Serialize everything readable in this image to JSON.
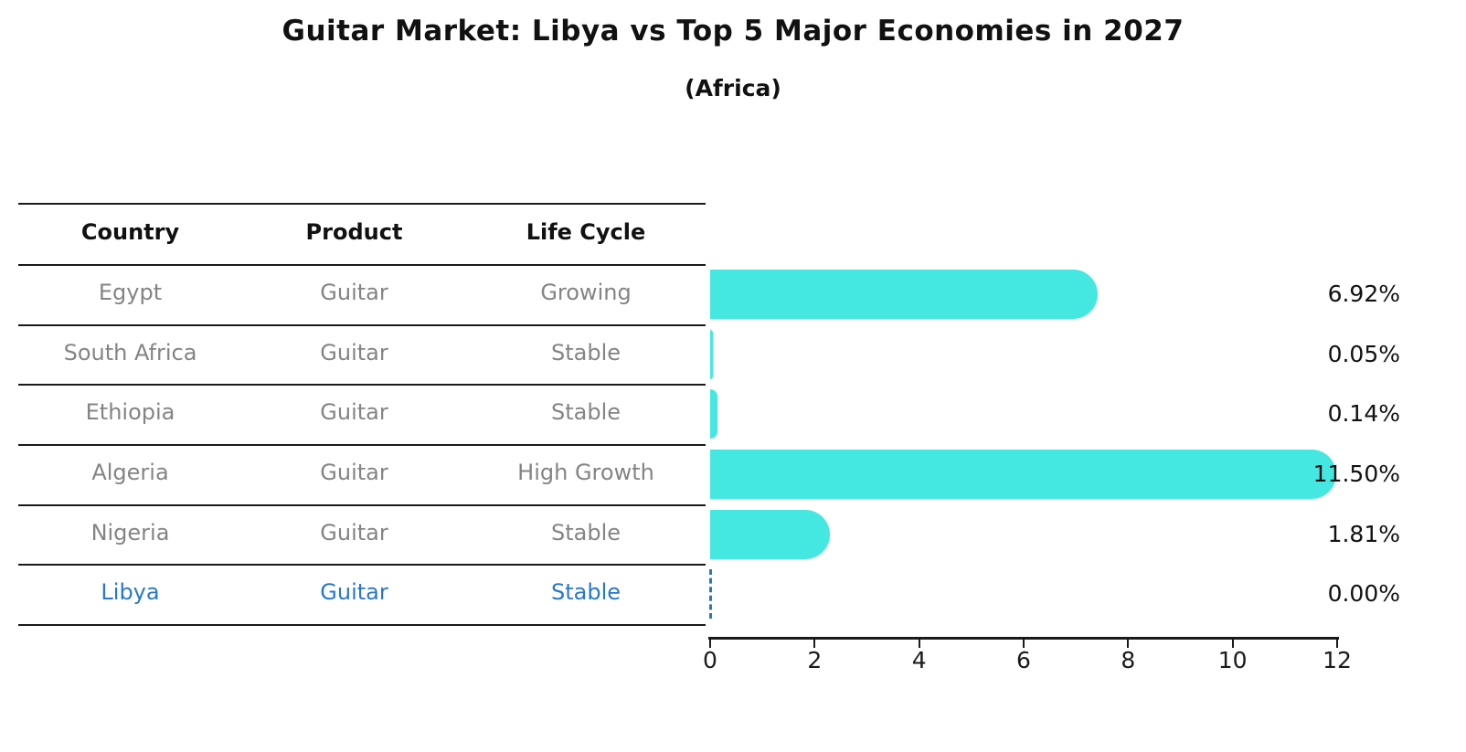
{
  "title": "Guitar Market: Libya vs Top 5 Major Economies in 2027",
  "subtitle": "(Africa)",
  "colors": {
    "bar": "#44E8E0",
    "highlight_blue": "#2878C8",
    "table_text_gray": "#848484",
    "line_black": "#1a1a1a"
  },
  "table": {
    "headers": [
      "Country",
      "Product",
      "Life Cycle"
    ]
  },
  "chart_data": {
    "type": "bar",
    "orientation": "horizontal",
    "title": "Guitar Market: Libya vs Top 5 Major Economies in 2027",
    "subtitle": "(Africa)",
    "xlabel": "",
    "ylabel": "",
    "xlim": [
      0,
      12
    ],
    "xticks": [
      "0",
      "2",
      "4",
      "6",
      "8",
      "10",
      "12"
    ],
    "grid": false,
    "legend": false,
    "categories": [
      "Egypt",
      "South Africa",
      "Ethiopia",
      "Algeria",
      "Nigeria",
      "Libya"
    ],
    "values": [
      6.92,
      0.05,
      0.14,
      11.5,
      1.81,
      0.0
    ],
    "value_labels": [
      "6.92%",
      "0.05%",
      "0.14%",
      "11.50%",
      "1.81%",
      "0.00%"
    ],
    "rows": [
      {
        "country": "Egypt",
        "product": "Guitar",
        "life_cycle": "Growing",
        "value": 6.92,
        "value_label": "6.92%",
        "highlighted": false
      },
      {
        "country": "South Africa",
        "product": "Guitar",
        "life_cycle": "Stable",
        "value": 0.05,
        "value_label": "0.05%",
        "highlighted": false
      },
      {
        "country": "Ethiopia",
        "product": "Guitar",
        "life_cycle": "Stable",
        "value": 0.14,
        "value_label": "0.14%",
        "highlighted": false
      },
      {
        "country": "Algeria",
        "product": "Guitar",
        "life_cycle": "High Growth",
        "value": 11.5,
        "value_label": "11.50%",
        "highlighted": false
      },
      {
        "country": "Nigeria",
        "product": "Guitar",
        "life_cycle": "Stable",
        "value": 1.81,
        "value_label": "1.81%",
        "highlighted": false
      },
      {
        "country": "Libya",
        "product": "Guitar",
        "life_cycle": "Stable",
        "value": 0.0,
        "value_label": "0.00%",
        "highlighted": true
      }
    ]
  }
}
